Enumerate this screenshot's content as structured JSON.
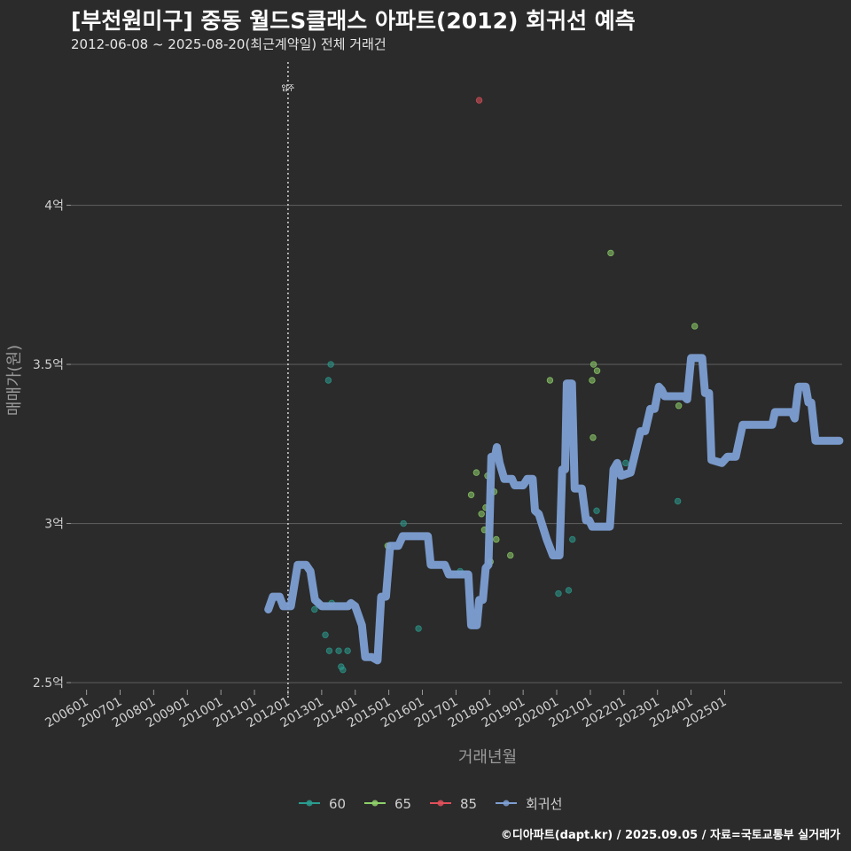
{
  "header": {
    "title": "[부천원미구] 중동 월드S클래스 아파트(2012) 회귀선 예측",
    "subtitle": "2012-06-08 ~ 2025-08-20(최근계약일) 전체 거래건"
  },
  "footer": {
    "credit": "©디아파트(dapt.kr) / 2025.09.05 / 자료=국토교통부 실거래가"
  },
  "colors": {
    "background": "#2b2b2b",
    "grid": "#5a5a5a",
    "series_60": "#2a9d8f",
    "series_65": "#8fd16a",
    "series_85": "#e0505a",
    "regression": "#7d9fd3"
  },
  "chart_data": {
    "type": "scatter",
    "title": "[부천원미구] 중동 월드S클래스 아파트(2012) 회귀선 예측",
    "subtitle": "2012-06-08 ~ 2025-08-20(최근계약일) 전체 거래건",
    "xlabel": "거래년월",
    "ylabel": "매매가(원)",
    "xlim": [
      "2005-07-15",
      "2028-07-01"
    ],
    "ylim": [
      2.45,
      4.45
    ],
    "y_unit": "억",
    "x_ticks": [
      "200601",
      "200701",
      "200801",
      "200901",
      "201001",
      "201101",
      "201201",
      "201301",
      "201401",
      "201501",
      "201601",
      "201701",
      "201801",
      "201901",
      "202001",
      "202101",
      "202201",
      "202301",
      "202401",
      "202501"
    ],
    "y_ticks": [
      {
        "value": 2.5,
        "label": "2.5억"
      },
      {
        "value": 3.0,
        "label": "3억"
      },
      {
        "value": 3.5,
        "label": "3.5억"
      },
      {
        "value": 4.0,
        "label": "4억"
      }
    ],
    "grid": true,
    "legend_position": "bottom",
    "annotations": [
      {
        "type": "vline",
        "x": "2012-01-01",
        "label": "입주"
      }
    ],
    "series": [
      {
        "name": "60",
        "type": "scatter",
        "points": [
          {
            "x": "2012-10-15",
            "y": 2.73
          },
          {
            "x": "2012-11-20",
            "y": 2.75
          },
          {
            "x": "2013-02-10",
            "y": 2.65
          },
          {
            "x": "2013-03-15",
            "y": 3.45
          },
          {
            "x": "2013-04-10",
            "y": 3.5
          },
          {
            "x": "2013-03-25",
            "y": 2.6
          },
          {
            "x": "2013-07-05",
            "y": 2.6
          },
          {
            "x": "2013-08-01",
            "y": 2.55
          },
          {
            "x": "2013-08-20",
            "y": 2.54
          },
          {
            "x": "2013-10-10",
            "y": 2.6
          },
          {
            "x": "2013-04-20",
            "y": 2.75
          },
          {
            "x": "2015-06-10",
            "y": 3.0
          },
          {
            "x": "2015-11-20",
            "y": 2.67
          },
          {
            "x": "2017-02-15",
            "y": 2.85
          },
          {
            "x": "2020-01-20",
            "y": 2.78
          },
          {
            "x": "2020-05-10",
            "y": 2.79
          },
          {
            "x": "2020-06-20",
            "y": 2.95
          },
          {
            "x": "2021-03-10",
            "y": 3.04
          },
          {
            "x": "2022-01-20",
            "y": 3.19
          },
          {
            "x": "2023-08-10",
            "y": 3.07
          }
        ]
      },
      {
        "name": "65",
        "type": "scatter",
        "points": [
          {
            "x": "2014-12-20",
            "y": 2.93
          },
          {
            "x": "2017-06-15",
            "y": 3.09
          },
          {
            "x": "2017-08-10",
            "y": 3.16
          },
          {
            "x": "2017-10-05",
            "y": 3.03
          },
          {
            "x": "2017-11-20",
            "y": 3.05
          },
          {
            "x": "2017-11-05",
            "y": 2.98
          },
          {
            "x": "2017-12-10",
            "y": 3.15
          },
          {
            "x": "2018-01-10",
            "y": 2.88
          },
          {
            "x": "2018-02-20",
            "y": 3.1
          },
          {
            "x": "2018-03-15",
            "y": 2.95
          },
          {
            "x": "2018-08-15",
            "y": 2.9
          },
          {
            "x": "2019-10-20",
            "y": 3.45
          },
          {
            "x": "2021-02-05",
            "y": 3.5
          },
          {
            "x": "2021-01-20",
            "y": 3.45
          },
          {
            "x": "2021-03-15",
            "y": 3.48
          },
          {
            "x": "2021-01-30",
            "y": 3.27
          },
          {
            "x": "2021-08-10",
            "y": 3.85
          },
          {
            "x": "2023-08-20",
            "y": 3.37
          },
          {
            "x": "2024-02-10",
            "y": 3.62
          }
        ]
      },
      {
        "name": "85",
        "type": "scatter",
        "points": [
          {
            "x": "2017-09-10",
            "y": 4.33
          }
        ]
      },
      {
        "name": "회귀선",
        "type": "line",
        "points": [
          {
            "x": "2011-06-01",
            "y": 2.73
          },
          {
            "x": "2011-07-20",
            "y": 2.77
          },
          {
            "x": "2011-10-01",
            "y": 2.77
          },
          {
            "x": "2011-11-10",
            "y": 2.74
          },
          {
            "x": "2012-02-01",
            "y": 2.74
          },
          {
            "x": "2012-04-15",
            "y": 2.87
          },
          {
            "x": "2012-07-15",
            "y": 2.87
          },
          {
            "x": "2012-09-01",
            "y": 2.85
          },
          {
            "x": "2012-10-20",
            "y": 2.76
          },
          {
            "x": "2013-01-01",
            "y": 2.74
          },
          {
            "x": "2013-10-15",
            "y": 2.74
          },
          {
            "x": "2013-11-15",
            "y": 2.75
          },
          {
            "x": "2014-01-01",
            "y": 2.74
          },
          {
            "x": "2014-03-15",
            "y": 2.68
          },
          {
            "x": "2014-04-20",
            "y": 2.58
          },
          {
            "x": "2014-07-01",
            "y": 2.58
          },
          {
            "x": "2014-09-01",
            "y": 2.57
          },
          {
            "x": "2014-10-10",
            "y": 2.77
          },
          {
            "x": "2014-12-01",
            "y": 2.77
          },
          {
            "x": "2015-01-15",
            "y": 2.93
          },
          {
            "x": "2015-04-15",
            "y": 2.93
          },
          {
            "x": "2015-06-01",
            "y": 2.96
          },
          {
            "x": "2016-03-01",
            "y": 2.96
          },
          {
            "x": "2016-04-01",
            "y": 2.87
          },
          {
            "x": "2016-09-01",
            "y": 2.87
          },
          {
            "x": "2016-10-15",
            "y": 2.84
          },
          {
            "x": "2017-05-15",
            "y": 2.84
          },
          {
            "x": "2017-06-15",
            "y": 2.68
          },
          {
            "x": "2017-08-15",
            "y": 2.68
          },
          {
            "x": "2017-09-10",
            "y": 2.76
          },
          {
            "x": "2017-10-20",
            "y": 2.76
          },
          {
            "x": "2017-11-20",
            "y": 2.86
          },
          {
            "x": "2017-12-20",
            "y": 2.87
          },
          {
            "x": "2018-01-20",
            "y": 3.21
          },
          {
            "x": "2018-03-01",
            "y": 3.21
          },
          {
            "x": "2018-03-20",
            "y": 3.24
          },
          {
            "x": "2018-04-20",
            "y": 3.19
          },
          {
            "x": "2018-06-10",
            "y": 3.14
          },
          {
            "x": "2018-09-01",
            "y": 3.14
          },
          {
            "x": "2018-10-01",
            "y": 3.12
          },
          {
            "x": "2019-01-01",
            "y": 3.12
          },
          {
            "x": "2019-02-15",
            "y": 3.14
          },
          {
            "x": "2019-04-15",
            "y": 3.14
          },
          {
            "x": "2019-05-10",
            "y": 3.04
          },
          {
            "x": "2019-06-20",
            "y": 3.03
          },
          {
            "x": "2019-09-15",
            "y": 2.95
          },
          {
            "x": "2019-11-20",
            "y": 2.9
          },
          {
            "x": "2020-02-01",
            "y": 2.9
          },
          {
            "x": "2020-03-01",
            "y": 3.17
          },
          {
            "x": "2020-04-01",
            "y": 3.17
          },
          {
            "x": "2020-04-20",
            "y": 3.44
          },
          {
            "x": "2020-06-15",
            "y": 3.44
          },
          {
            "x": "2020-07-15",
            "y": 3.11
          },
          {
            "x": "2020-10-01",
            "y": 3.11
          },
          {
            "x": "2020-11-15",
            "y": 3.01
          },
          {
            "x": "2020-12-20",
            "y": 3.01
          },
          {
            "x": "2021-01-20",
            "y": 2.99
          },
          {
            "x": "2021-08-01",
            "y": 2.99
          },
          {
            "x": "2021-09-10",
            "y": 3.17
          },
          {
            "x": "2021-10-20",
            "y": 3.19
          },
          {
            "x": "2021-12-01",
            "y": 3.15
          },
          {
            "x": "2022-03-15",
            "y": 3.16
          },
          {
            "x": "2022-07-01",
            "y": 3.29
          },
          {
            "x": "2022-08-20",
            "y": 3.29
          },
          {
            "x": "2022-10-15",
            "y": 3.36
          },
          {
            "x": "2022-12-01",
            "y": 3.36
          },
          {
            "x": "2023-01-15",
            "y": 3.43
          },
          {
            "x": "2023-02-15",
            "y": 3.42
          },
          {
            "x": "2023-03-20",
            "y": 3.4
          },
          {
            "x": "2023-10-15",
            "y": 3.4
          },
          {
            "x": "2023-11-20",
            "y": 3.39
          },
          {
            "x": "2024-01-01",
            "y": 3.52
          },
          {
            "x": "2024-05-01",
            "y": 3.52
          },
          {
            "x": "2024-06-01",
            "y": 3.41
          },
          {
            "x": "2024-07-15",
            "y": 3.41
          },
          {
            "x": "2024-08-10",
            "y": 3.2
          },
          {
            "x": "2024-12-01",
            "y": 3.19
          },
          {
            "x": "2025-02-01",
            "y": 3.21
          },
          {
            "x": "2025-05-01",
            "y": 3.21
          },
          {
            "x": "2025-07-15",
            "y": 3.31
          },
          {
            "x": "2026-06-01",
            "y": 3.31
          },
          {
            "x": "2026-07-01",
            "y": 3.35
          },
          {
            "x": "2027-01-01",
            "y": 3.35
          },
          {
            "x": "2027-02-01",
            "y": 3.33
          },
          {
            "x": "2027-03-15",
            "y": 3.43
          },
          {
            "x": "2027-06-01",
            "y": 3.43
          },
          {
            "x": "2027-07-01",
            "y": 3.38
          },
          {
            "x": "2027-08-01",
            "y": 3.38
          },
          {
            "x": "2027-09-15",
            "y": 3.26
          },
          {
            "x": "2028-06-01",
            "y": 3.26
          }
        ]
      }
    ]
  }
}
